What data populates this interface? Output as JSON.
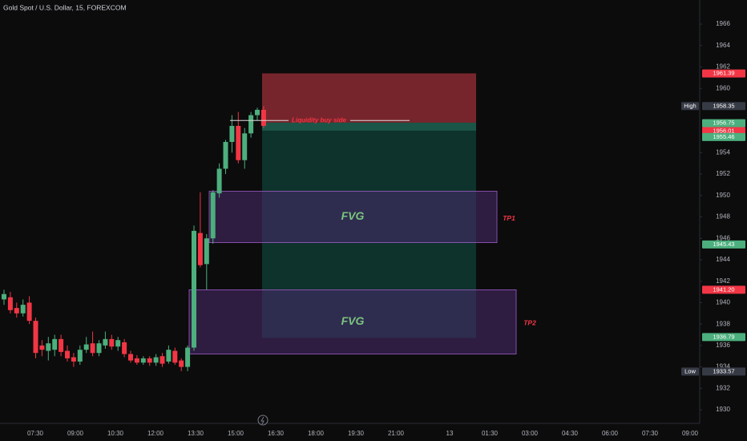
{
  "header": {
    "title": "Gold Spot / U.S. Dollar, 15, FOREXCOM"
  },
  "chart_data": {
    "type": "candlestick",
    "up_color": "#4caf7d",
    "down_color": "#f23645",
    "ylim": [
      1928.73,
      1968.25
    ],
    "yticks": [
      1930,
      1932,
      1934,
      1936,
      1938,
      1940,
      1942,
      1944,
      1946,
      1948,
      1950,
      1952,
      1954,
      1960,
      1962,
      1964,
      1966
    ],
    "xticks": [
      "07:30",
      "09:00",
      "10:30",
      "12:00",
      "13:30",
      "15:00",
      "16:30",
      "18:00",
      "19:30",
      "21:00",
      "13",
      "01:30",
      "03:00",
      "04:30",
      "06:00",
      "07:30",
      "09:00"
    ],
    "open": [
      1940.3,
      1940.5,
      1939.5,
      1939,
      1940,
      1938.3,
      1936,
      1935.5,
      1935.6,
      1936.6,
      1935.5,
      1934.9,
      1934.5,
      1935.6,
      1936.2,
      1935.3,
      1936,
      1936.6,
      1935.9,
      1936.3,
      1935.2,
      1934.8,
      1934.4,
      1934.8,
      1934.4,
      1935,
      1934.5,
      1935.5,
      1934.6,
      1934,
      1935.8,
      1946.5,
      1943.6,
      1946,
      1950.2,
      1952.5,
      1955,
      1956.5,
      1953.3,
      1955.8,
      1957.5,
      1958
    ],
    "high": [
      1941.2,
      1941,
      1940,
      1940.3,
      1940.6,
      1938.6,
      1936.5,
      1936.8,
      1937,
      1937,
      1936,
      1935.3,
      1936,
      1936.8,
      1937.3,
      1936.5,
      1937.3,
      1937,
      1936.8,
      1936.6,
      1935.5,
      1935.1,
      1935,
      1935,
      1935.2,
      1935.3,
      1936,
      1935.8,
      1934.8,
      1936,
      1947.2,
      1950.3,
      1946.4,
      1950.5,
      1953,
      1955.2,
      1957.5,
      1957.8,
      1956.3,
      1957.8,
      1958.2,
      1958.35
    ],
    "low": [
      1939.8,
      1939,
      1938.6,
      1938.7,
      1938,
      1934.8,
      1935,
      1934.6,
      1935,
      1935,
      1934.5,
      1934,
      1934.2,
      1935.3,
      1935,
      1935,
      1935.7,
      1935.6,
      1935.5,
      1934.9,
      1934.4,
      1934.2,
      1934.2,
      1934.1,
      1934.1,
      1934,
      1934.3,
      1934.2,
      1933.6,
      1933.6,
      1935.5,
      1943.3,
      1941.2,
      1945.5,
      1949.8,
      1952,
      1954,
      1953,
      1952.5,
      1955.4,
      1957,
      1956.3
    ],
    "close": [
      1940.8,
      1939.3,
      1939,
      1939.8,
      1938.3,
      1935.3,
      1935.6,
      1936.2,
      1936.6,
      1935.4,
      1934.8,
      1934.5,
      1935.6,
      1936.1,
      1935.3,
      1936.2,
      1936.6,
      1935.9,
      1936.5,
      1935.2,
      1934.6,
      1934.4,
      1934.8,
      1934.4,
      1934.9,
      1934.3,
      1935.6,
      1934.4,
      1934,
      1935.8,
      1946.7,
      1943.5,
      1946,
      1950.3,
      1952.5,
      1955,
      1956.5,
      1953.3,
      1955.8,
      1957.5,
      1958,
      1956.5
    ],
    "zones": [
      {
        "top": 1961.4,
        "bottom": 1956.8,
        "color": "#8b2a33"
      },
      {
        "top": 1956.8,
        "bottom": 1936.7,
        "color": "#0f3a33"
      },
      {
        "top": 1950.4,
        "bottom": 1945.6,
        "color": "#4a2a6e",
        "label": "FVG",
        "target": "TP1"
      },
      {
        "top": 1941.2,
        "bottom": 1935.2,
        "color": "#4a2a6e",
        "label": "FVG",
        "target": "TP2"
      }
    ],
    "liquidity": {
      "value": 1957.0,
      "label": "Liquidity buy side"
    },
    "price_labels": [
      {
        "value": 1961.39,
        "label": "1961.39",
        "color": "#f23645"
      },
      {
        "value": 1958.35,
        "label": "1958.35",
        "tag": "High",
        "color": "#363a45"
      },
      {
        "value": 1956.75,
        "label": "1956.75",
        "color": "#4caf7d"
      },
      {
        "value": 1956.01,
        "label": "1956.01",
        "color": "#f23645"
      },
      {
        "value": 1955.46,
        "label": "1955.46",
        "color": "#4caf7d"
      },
      {
        "value": 1945.43,
        "label": "1945.43",
        "color": "#4caf7d"
      },
      {
        "value": 1941.2,
        "label": "1941.20",
        "color": "#f23645"
      },
      {
        "value": 1936.79,
        "label": "1936.79",
        "color": "#4caf7d"
      },
      {
        "value": 1933.57,
        "label": "1933.57",
        "tag": "Low",
        "color": "#363a45"
      }
    ]
  }
}
